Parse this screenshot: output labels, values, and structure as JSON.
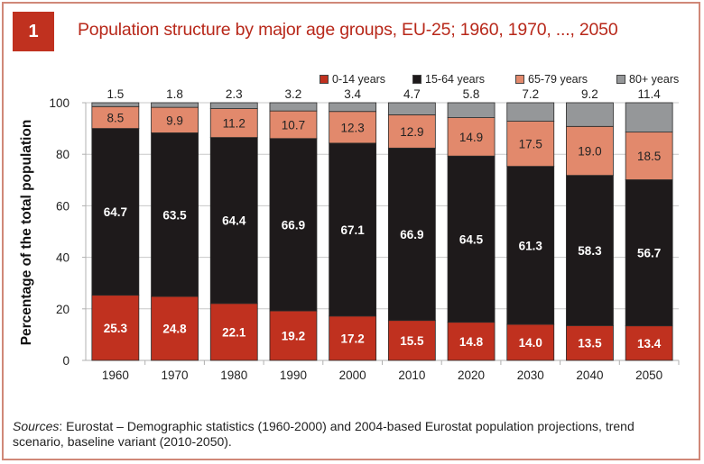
{
  "figure": {
    "number": "1",
    "title": "Population structure by major age groups, EU-25; 1960, 1970, ..., 2050",
    "source_label": "Sources",
    "source_text": ": Eurostat – Demographic statistics (1960-2000) and 2004-based Eurostat population projections, trend scenario, baseline variant (2010-2050)."
  },
  "chart_data": {
    "type": "bar",
    "stacked": true,
    "title": "Population structure by major age groups, EU-25; 1960, 1970, ..., 2050",
    "xlabel": "",
    "ylabel": "Percentage of the total population",
    "ylim": [
      0,
      100
    ],
    "yticks": [
      0,
      20,
      40,
      60,
      80,
      100
    ],
    "grid": true,
    "legend_position": "top-right",
    "categories": [
      "1960",
      "1970",
      "1980",
      "1990",
      "2000",
      "2010",
      "2020",
      "2030",
      "2040",
      "2050"
    ],
    "series": [
      {
        "name": "0-14 years",
        "color": "#c0311f",
        "label_color": "#ffffff",
        "values": [
          25.3,
          24.8,
          22.1,
          19.2,
          17.2,
          15.5,
          14.8,
          14.0,
          13.5,
          13.4
        ]
      },
      {
        "name": "15-64 years",
        "color": "#1e1a1b",
        "label_color": "#ffffff",
        "values": [
          64.7,
          63.5,
          64.4,
          66.9,
          67.1,
          66.9,
          64.5,
          61.3,
          58.3,
          56.7
        ]
      },
      {
        "name": "65-79 years",
        "color": "#e2896c",
        "label_color": "#222222",
        "values": [
          8.5,
          9.9,
          11.2,
          10.7,
          12.3,
          12.9,
          14.9,
          17.5,
          19.0,
          18.5
        ]
      },
      {
        "name": "80+ years",
        "color": "#959799",
        "label_color": "#222222",
        "values": [
          1.5,
          1.8,
          2.3,
          3.2,
          3.4,
          4.7,
          5.8,
          7.2,
          9.2,
          11.4
        ]
      }
    ],
    "data_labels": [
      [
        "25.3",
        "24.8",
        "22.1",
        "19.2",
        "17.2",
        "15.5",
        "14.8",
        "14.0",
        "13.5",
        "13.4"
      ],
      [
        "64.7",
        "63.5",
        "64.4",
        "66.9",
        "67.1",
        "66.9",
        "64.5",
        "61.3",
        "58.3",
        "56.7"
      ],
      [
        "8.5",
        "9.9",
        "11.2",
        "10.7",
        "12.3",
        "12.9",
        "14.9",
        "17.5",
        "19.0",
        "18.5"
      ],
      [
        "1.5",
        "1.8",
        "2.3",
        "3.2",
        "3.4",
        "4.7",
        "5.8",
        "7.2",
        "9.2",
        "11.4"
      ]
    ]
  }
}
